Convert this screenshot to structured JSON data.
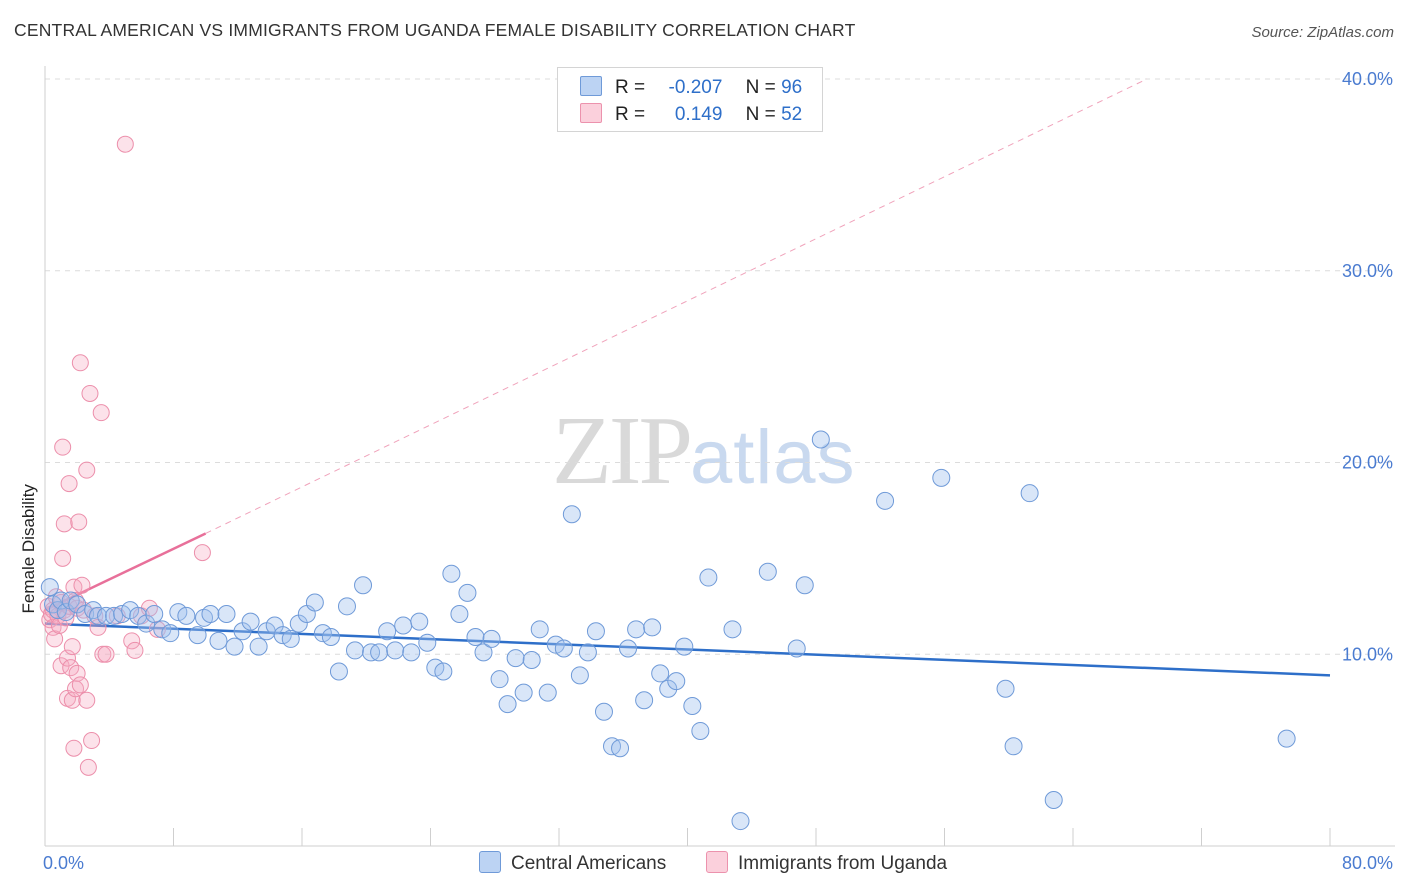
{
  "title": "CENTRAL AMERICAN VS IMMIGRANTS FROM UGANDA FEMALE DISABILITY CORRELATION CHART",
  "source": "Source: ZipAtlas.com",
  "watermark": {
    "zip": "ZIP",
    "atlas": "atlas"
  },
  "colors": {
    "blue": "#2e6fc9",
    "blue_fill": "#a9c6ee",
    "pink": "#e8709a",
    "pink_fill": "#f6b6ca"
  },
  "legend_top": {
    "rows": [
      {
        "r_label": "R =",
        "r_value": "-0.207",
        "n_label": "N =",
        "n_value": "96"
      },
      {
        "r_label": "R =",
        "r_value": "0.149",
        "n_label": "N =",
        "n_value": "52"
      }
    ]
  },
  "legend_bottom": {
    "series1": "Central Americans",
    "series2": "Immigrants from Uganda"
  },
  "chart_data": {
    "type": "scatter",
    "xlabel": "",
    "ylabel": "Female Disability",
    "xlim": [
      0,
      80
    ],
    "ylim": [
      0,
      40
    ],
    "x_tick_labels": [
      "0.0%",
      "80.0%"
    ],
    "y_tick_labels": [
      "10.0%",
      "20.0%",
      "30.0%",
      "40.0%"
    ],
    "y_ticks": [
      10,
      20,
      30,
      40
    ],
    "series": [
      {
        "name": "Central Americans",
        "color": "#2e6fc9",
        "trend": {
          "x0": 0,
          "y0": 11.6,
          "x1": 80,
          "y1": 8.9
        },
        "points": [
          [
            0.3,
            13.5
          ],
          [
            0.5,
            12.6
          ],
          [
            0.8,
            12.3
          ],
          [
            1.0,
            12.8
          ],
          [
            1.3,
            12.2
          ],
          [
            1.6,
            12.8
          ],
          [
            2.0,
            12.6
          ],
          [
            2.5,
            12.1
          ],
          [
            3.0,
            12.3
          ],
          [
            3.3,
            12.0
          ],
          [
            3.8,
            12.0
          ],
          [
            4.3,
            12.0
          ],
          [
            4.8,
            12.1
          ],
          [
            5.3,
            12.3
          ],
          [
            5.8,
            12.0
          ],
          [
            6.3,
            11.6
          ],
          [
            6.8,
            12.1
          ],
          [
            7.3,
            11.3
          ],
          [
            7.8,
            11.1
          ],
          [
            8.3,
            12.2
          ],
          [
            8.8,
            12.0
          ],
          [
            9.5,
            11.0
          ],
          [
            9.9,
            11.9
          ],
          [
            10.3,
            12.1
          ],
          [
            10.8,
            10.7
          ],
          [
            11.3,
            12.1
          ],
          [
            11.8,
            10.4
          ],
          [
            12.3,
            11.2
          ],
          [
            12.8,
            11.7
          ],
          [
            13.3,
            10.4
          ],
          [
            13.8,
            11.2
          ],
          [
            14.3,
            11.5
          ],
          [
            14.8,
            11.0
          ],
          [
            15.3,
            10.8
          ],
          [
            15.8,
            11.6
          ],
          [
            16.3,
            12.1
          ],
          [
            16.8,
            12.7
          ],
          [
            17.3,
            11.1
          ],
          [
            17.8,
            10.9
          ],
          [
            18.3,
            9.1
          ],
          [
            18.8,
            12.5
          ],
          [
            19.3,
            10.2
          ],
          [
            19.8,
            13.6
          ],
          [
            20.3,
            10.1
          ],
          [
            20.8,
            10.1
          ],
          [
            21.3,
            11.2
          ],
          [
            21.8,
            10.2
          ],
          [
            22.3,
            11.5
          ],
          [
            22.8,
            10.1
          ],
          [
            23.3,
            11.7
          ],
          [
            23.8,
            10.6
          ],
          [
            24.3,
            9.3
          ],
          [
            24.8,
            9.1
          ],
          [
            25.3,
            14.2
          ],
          [
            25.8,
            12.1
          ],
          [
            26.3,
            13.2
          ],
          [
            26.8,
            10.9
          ],
          [
            27.3,
            10.1
          ],
          [
            27.8,
            10.8
          ],
          [
            28.3,
            8.7
          ],
          [
            28.8,
            7.4
          ],
          [
            29.3,
            9.8
          ],
          [
            29.8,
            8.0
          ],
          [
            30.3,
            9.7
          ],
          [
            30.8,
            11.3
          ],
          [
            31.3,
            8.0
          ],
          [
            31.8,
            10.5
          ],
          [
            32.3,
            10.3
          ],
          [
            32.8,
            17.3
          ],
          [
            33.3,
            8.9
          ],
          [
            33.8,
            10.1
          ],
          [
            34.3,
            11.2
          ],
          [
            34.8,
            7.0
          ],
          [
            35.3,
            5.2
          ],
          [
            35.8,
            5.1
          ],
          [
            36.3,
            10.3
          ],
          [
            36.8,
            11.3
          ],
          [
            37.3,
            7.6
          ],
          [
            37.8,
            11.4
          ],
          [
            38.3,
            9.0
          ],
          [
            38.8,
            8.2
          ],
          [
            39.3,
            8.6
          ],
          [
            39.8,
            10.4
          ],
          [
            40.3,
            7.3
          ],
          [
            40.8,
            6.0
          ],
          [
            41.3,
            14.0
          ],
          [
            42.8,
            11.3
          ],
          [
            43.3,
            1.3
          ],
          [
            45.0,
            14.3
          ],
          [
            46.8,
            10.3
          ],
          [
            47.3,
            13.6
          ],
          [
            48.3,
            21.2
          ],
          [
            52.3,
            18.0
          ],
          [
            55.8,
            19.2
          ],
          [
            59.8,
            8.2
          ],
          [
            60.3,
            5.2
          ],
          [
            61.3,
            18.4
          ],
          [
            62.8,
            2.4
          ],
          [
            77.3,
            5.6
          ]
        ]
      },
      {
        "name": "Immigrants from Uganda",
        "color": "#e8709a",
        "trend": {
          "x0": 0,
          "y0": 12.3,
          "x1": 10,
          "y1": 16.3
        },
        "trend_dashed": {
          "x0": 10,
          "y0": 16.3,
          "x1": 68.6,
          "y1": 40.0
        },
        "points": [
          [
            0.2,
            12.5
          ],
          [
            0.3,
            11.8
          ],
          [
            0.4,
            12.1
          ],
          [
            0.5,
            12.3
          ],
          [
            0.5,
            11.4
          ],
          [
            0.6,
            10.8
          ],
          [
            0.7,
            13.0
          ],
          [
            0.8,
            12.0
          ],
          [
            0.9,
            11.5
          ],
          [
            1.0,
            9.4
          ],
          [
            1.0,
            12.7
          ],
          [
            1.1,
            20.8
          ],
          [
            1.1,
            15.0
          ],
          [
            1.2,
            12.3
          ],
          [
            1.2,
            16.8
          ],
          [
            1.3,
            11.9
          ],
          [
            1.4,
            9.8
          ],
          [
            1.4,
            7.7
          ],
          [
            1.5,
            12.5
          ],
          [
            1.5,
            18.9
          ],
          [
            1.6,
            9.3
          ],
          [
            1.7,
            7.6
          ],
          [
            1.7,
            10.4
          ],
          [
            1.8,
            5.1
          ],
          [
            1.8,
            13.5
          ],
          [
            1.9,
            8.2
          ],
          [
            1.9,
            12.8
          ],
          [
            2.0,
            12.4
          ],
          [
            2.0,
            9.0
          ],
          [
            2.1,
            16.9
          ],
          [
            2.2,
            25.2
          ],
          [
            2.2,
            8.4
          ],
          [
            2.3,
            13.6
          ],
          [
            2.4,
            12.3
          ],
          [
            2.6,
            19.6
          ],
          [
            2.6,
            7.6
          ],
          [
            2.7,
            4.1
          ],
          [
            2.8,
            23.6
          ],
          [
            2.9,
            5.5
          ],
          [
            3.1,
            12.0
          ],
          [
            3.3,
            11.4
          ],
          [
            3.5,
            22.6
          ],
          [
            3.6,
            10.0
          ],
          [
            3.8,
            10.0
          ],
          [
            4.5,
            12.0
          ],
          [
            5.0,
            36.6
          ],
          [
            5.4,
            10.7
          ],
          [
            5.6,
            10.2
          ],
          [
            6.0,
            12.0
          ],
          [
            6.5,
            12.4
          ],
          [
            7.0,
            11.3
          ],
          [
            9.8,
            15.3
          ]
        ]
      }
    ]
  }
}
